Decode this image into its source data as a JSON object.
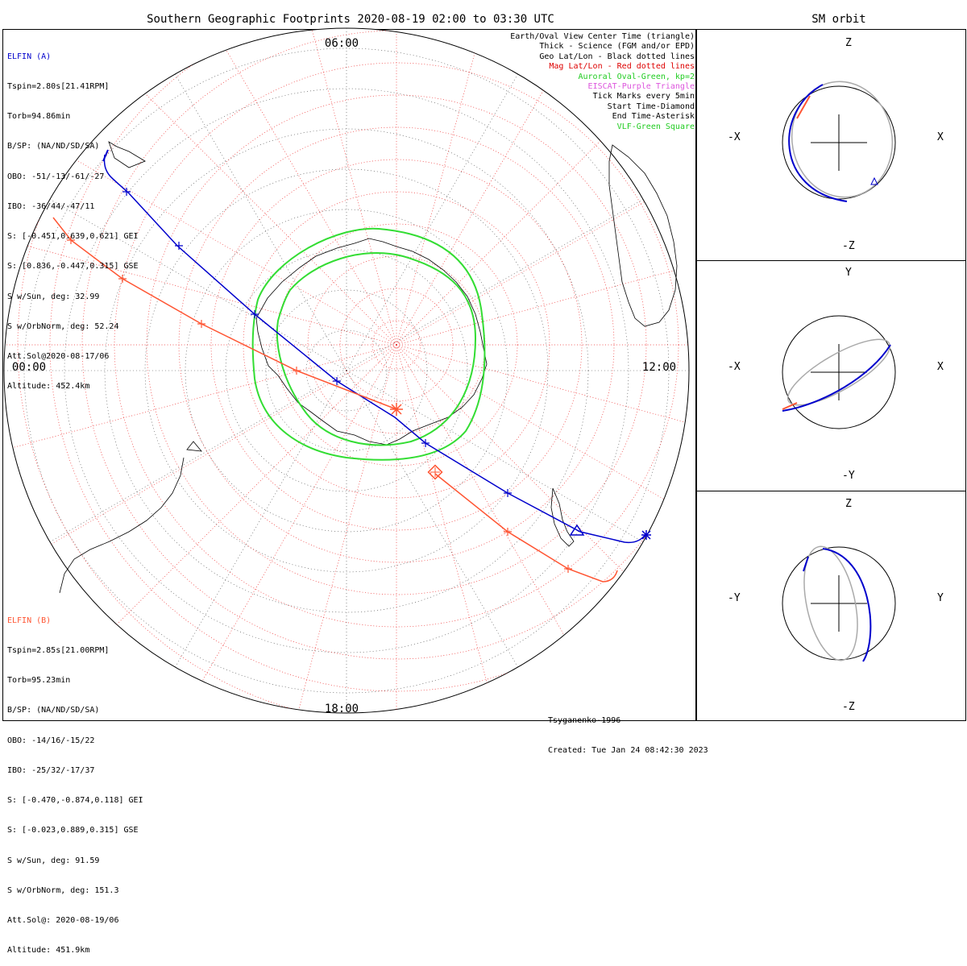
{
  "title": "Southern Geographic Footprints 2020-08-19 02:00 to 03:30 UTC",
  "right_title": "SM orbit",
  "time_labels": {
    "top": "06:00",
    "left": "00:00",
    "right": "12:00",
    "bottom": "18:00"
  },
  "elfin_a": {
    "name": "ELFIN (A)",
    "color": "#0000cc",
    "lines": [
      "Tspin=2.80s[21.41RPM]",
      "Torb=94.86min",
      "B/SP: (NA/ND/SD/SA)",
      "OBO: -51/-13/-61/-27",
      "IBO: -36/44/-47/11",
      "S: [-0.451,0.639,0.621] GEI",
      "S: [0.836,-0.447,0.315] GSE",
      "S w/Sun, deg: 32.99",
      "S w/OrbNorm, deg: 52.24",
      "Att.Sol@2020-08-17/06",
      "Altitude: 452.4km"
    ]
  },
  "elfin_b": {
    "name": "ELFIN (B)",
    "color": "#ff5533",
    "lines": [
      "Tspin=2.85s[21.00RPM]",
      "Torb=95.23min",
      "B/SP: (NA/ND/SD/SA)",
      "OBO: -14/16/-15/22",
      "IBO: -25/32/-17/37",
      "S: [-0.470,-0.874,0.118] GEI",
      "S: [-0.023,0.889,0.315] GSE",
      "S w/Sun, deg: 91.59",
      "S w/OrbNorm, deg: 151.3",
      "Att.Sol@: 2020-08-19/06",
      "Altitude: 451.9km"
    ]
  },
  "legend": [
    {
      "text": "Earth/Oval View Center Time (triangle)",
      "color": "#000000"
    },
    {
      "text": "Thick - Science (FGM and/or EPD)",
      "color": "#000000"
    },
    {
      "text": "Geo Lat/Lon - Black dotted lines",
      "color": "#000000"
    },
    {
      "text": "Mag Lat/Lon - Red dotted lines",
      "color": "#dd0000"
    },
    {
      "text": "Auroral Oval-Green, kp=2",
      "color": "#22cc22"
    },
    {
      "text": "EISCAT-Purple Triangle",
      "color": "#dd55dd"
    },
    {
      "text": "Tick Marks every 5min",
      "color": "#000000"
    },
    {
      "text": "Start Time-Diamond",
      "color": "#000000"
    },
    {
      "text": "End Time-Asterisk",
      "color": "#000000"
    },
    {
      "text": "VLF-Green Square",
      "color": "#22cc22"
    }
  ],
  "credits": [
    "Tsyganenko-1996",
    "Created: Tue Jan 24 08:42:30 2023"
  ],
  "panels": [
    {
      "top": "Z",
      "bottom": "-Z",
      "left": "-X",
      "right": "X"
    },
    {
      "top": "Y",
      "bottom": "-Y",
      "left": "-X",
      "right": "X"
    },
    {
      "top": "Z",
      "bottom": "-Z",
      "left": "-Y",
      "right": "Y"
    }
  ]
}
